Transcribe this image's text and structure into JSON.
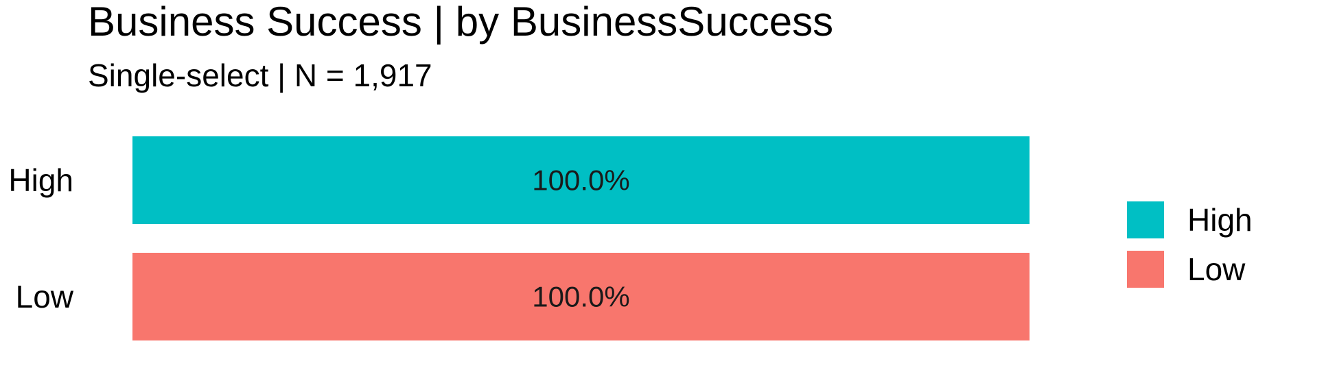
{
  "chart_data": {
    "type": "bar",
    "orientation": "horizontal",
    "title": "Business Success | by BusinessSuccess",
    "subtitle": "Single-select | N = 1,917",
    "xlabel": "",
    "ylabel": "",
    "categories": [
      "High",
      "Low"
    ],
    "values": [
      100.0,
      100.0
    ],
    "value_labels": [
      "100.0%",
      "100.0%"
    ],
    "xlim": [
      0,
      100
    ],
    "grid": false,
    "colors": [
      "#00BFC4",
      "#F8766D"
    ],
    "legend": {
      "position": "right",
      "entries": [
        {
          "label": "High",
          "color": "#00BFC4"
        },
        {
          "label": "Low",
          "color": "#F8766D"
        }
      ]
    }
  }
}
